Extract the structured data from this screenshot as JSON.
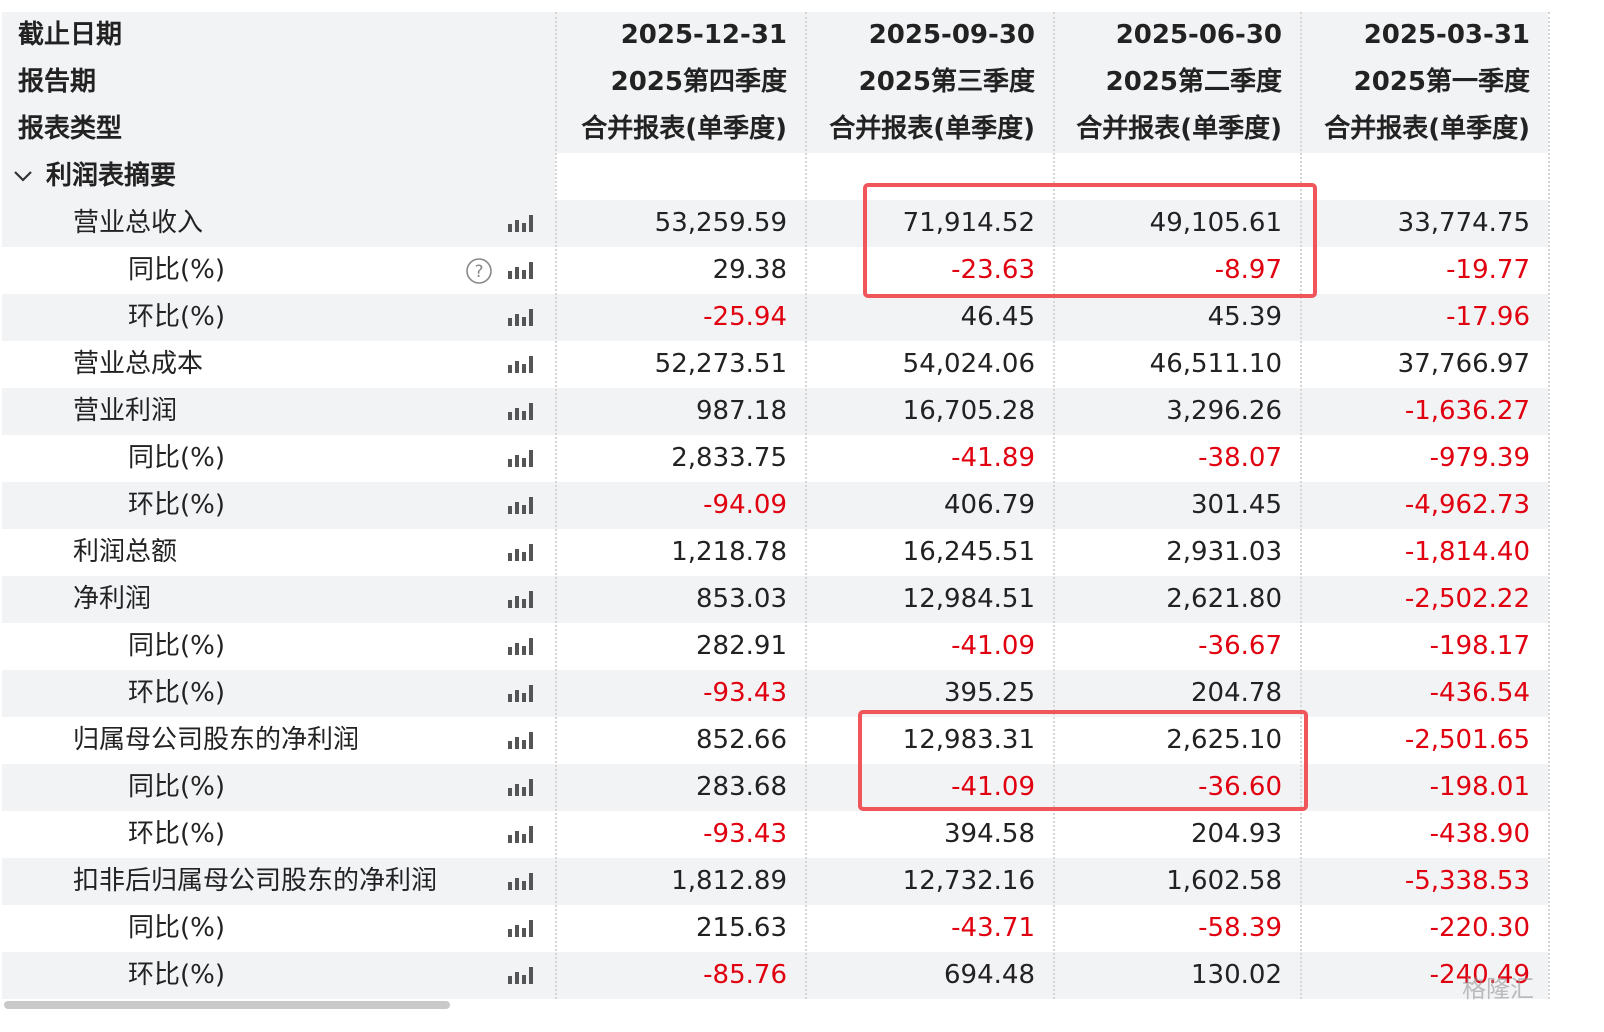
{
  "header": {
    "rows": [
      [
        "截止日期",
        "2025-12-31",
        "2025-09-30",
        "2025-06-30",
        "2025-03-31"
      ],
      [
        "报告期",
        "2025第四季度",
        "2025第三季度",
        "2025第二季度",
        "2025第一季度"
      ],
      [
        "报表类型",
        "合并报表(单季度)",
        "合并报表(单季度)",
        "合并报表(单季度)",
        "合并报表(单季度)"
      ]
    ]
  },
  "section": {
    "label": "利润表摘要",
    "items": [
      {
        "label": "营业总收入",
        "values": [
          "53,259.59",
          "71,914.52",
          "49,105.61",
          "33,774.75"
        ],
        "sub": [
          {
            "label": "同比(%)",
            "values": [
              "29.38",
              "-23.63",
              "-8.97",
              "-19.77"
            ]
          },
          {
            "label": "环比(%)",
            "values": [
              "-25.94",
              "46.45",
              "45.39",
              "-17.96"
            ]
          }
        ]
      },
      {
        "label": "营业总成本",
        "values": [
          "52,273.51",
          "54,024.06",
          "46,511.10",
          "37,766.97"
        ],
        "sub": []
      },
      {
        "label": "营业利润",
        "values": [
          "987.18",
          "16,705.28",
          "3,296.26",
          "-1,636.27"
        ],
        "sub": [
          {
            "label": "同比(%)",
            "values": [
              "2,833.75",
              "-41.89",
              "-38.07",
              "-979.39"
            ]
          },
          {
            "label": "环比(%)",
            "values": [
              "-94.09",
              "406.79",
              "301.45",
              "-4,962.73"
            ]
          }
        ]
      },
      {
        "label": "利润总额",
        "values": [
          "1,218.78",
          "16,245.51",
          "2,931.03",
          "-1,814.40"
        ],
        "sub": []
      },
      {
        "label": "净利润",
        "values": [
          "853.03",
          "12,984.51",
          "2,621.80",
          "-2,502.22"
        ],
        "sub": [
          {
            "label": "同比(%)",
            "values": [
              "282.91",
              "-41.09",
              "-36.67",
              "-198.17"
            ]
          },
          {
            "label": "环比(%)",
            "values": [
              "-93.43",
              "395.25",
              "204.78",
              "-436.54"
            ]
          }
        ]
      },
      {
        "label": "归属母公司股东的净利润",
        "values": [
          "852.66",
          "12,983.31",
          "2,625.10",
          "-2,501.65"
        ],
        "sub": [
          {
            "label": "同比(%)",
            "values": [
              "283.68",
              "-41.09",
              "-36.60",
              "-198.01"
            ]
          },
          {
            "label": "环比(%)",
            "values": [
              "-93.43",
              "394.58",
              "204.93",
              "-438.90"
            ]
          }
        ]
      },
      {
        "label": "扣非后归属母公司股东的净利润",
        "values": [
          "1,812.89",
          "12,732.16",
          "1,602.58",
          "-5,338.53"
        ],
        "sub": [
          {
            "label": "同比(%)",
            "values": [
              "215.63",
              "-43.71",
              "-58.39",
              "-220.30"
            ]
          },
          {
            "label": "环比(%)",
            "values": [
              "-85.76",
              "694.48",
              "130.02",
              "-240.49"
            ]
          }
        ]
      }
    ]
  },
  "watermark": "格隆汇"
}
